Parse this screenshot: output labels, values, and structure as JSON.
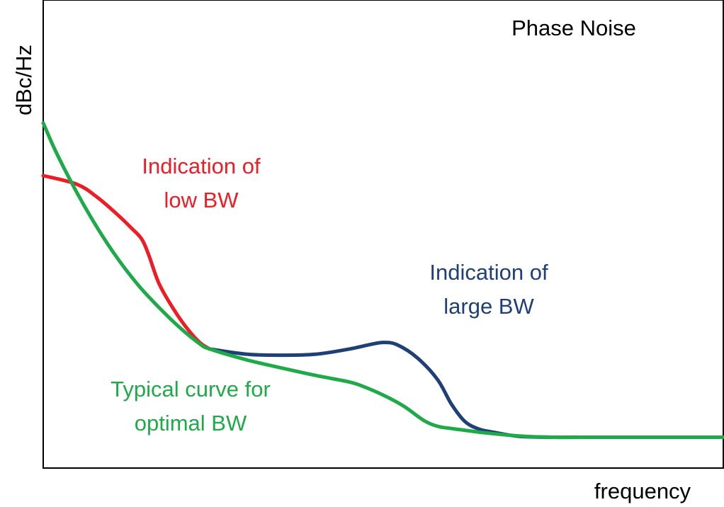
{
  "chart_data": {
    "type": "line",
    "title": "Phase Noise",
    "xlabel": "frequency",
    "ylabel": "dBc/Hz",
    "xlim": [
      0,
      100
    ],
    "ylim": [
      0,
      100
    ],
    "grid": false,
    "series": [
      {
        "name": "",
        "color": "#ee1c24",
        "x": [
          0,
          5,
          8,
          11,
          13,
          14.5,
          15.5,
          17,
          19,
          21,
          23,
          24.5
        ],
        "y": [
          60,
          58,
          55,
          51,
          48,
          45.5,
          42,
          35.5,
          30,
          25.5,
          22,
          20.5
        ]
      },
      {
        "name": "",
        "color": "#1f3f77",
        "x": [
          24.5,
          30,
          35,
          40,
          45,
          48,
          50,
          52,
          55,
          58,
          60,
          62,
          64,
          66,
          70,
          75,
          80,
          90,
          100
        ],
        "y": [
          20.5,
          19.3,
          19.1,
          19.3,
          20.5,
          21.5,
          22,
          21.5,
          18.5,
          13.5,
          8,
          4,
          2.3,
          1.6,
          0.6,
          0.4,
          0.4,
          0.4,
          0.4
        ]
      },
      {
        "name": "",
        "color": "#1faa4a",
        "x": [
          0,
          2,
          5,
          8,
          11,
          14,
          17,
          20,
          23,
          24.5,
          30,
          35,
          40,
          45,
          47,
          50,
          53,
          56,
          58,
          60,
          62,
          65,
          70,
          75,
          80,
          90,
          100
        ],
        "y": [
          72,
          65,
          56,
          48,
          41,
          35,
          30,
          25.5,
          21.7,
          20.5,
          18,
          16.2,
          14.5,
          13,
          12,
          10,
          7.5,
          4.2,
          2.9,
          2.4,
          2,
          1.4,
          0.7,
          0.4,
          0.4,
          0.4,
          0.4
        ]
      }
    ],
    "annotations": [
      {
        "lines": [
          "Indication of",
          "low BW"
        ],
        "color": "#ee1c24"
      },
      {
        "lines": [
          "Indication of",
          "large BW"
        ],
        "color": "#1f3f77"
      },
      {
        "lines": [
          "Typical curve for",
          "optimal BW"
        ],
        "color": "#1faa4a"
      }
    ]
  }
}
